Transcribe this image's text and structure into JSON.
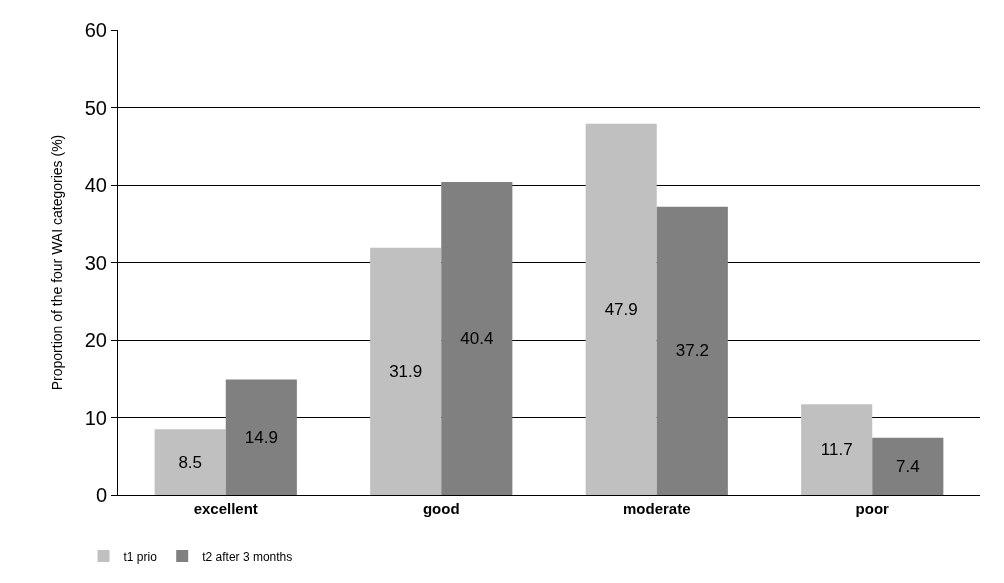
{
  "chart_data": {
    "type": "bar",
    "ylabel": "Proportion of the four WAI categories (%)",
    "categories": [
      "excellent",
      "good",
      "moderate",
      "poor"
    ],
    "series": [
      {
        "name": "t1 prio",
        "color": "#c0c0c0",
        "values": [
          8.5,
          31.9,
          47.9,
          11.7
        ]
      },
      {
        "name": "t2 after 3 months",
        "color": "#808080",
        "values": [
          14.9,
          40.4,
          37.2,
          7.4
        ]
      }
    ],
    "ylim": [
      0,
      60
    ],
    "yticks": [
      0,
      10,
      20,
      30,
      40,
      50,
      60
    ],
    "grid": "y",
    "data_labels": true,
    "legend": "bottom left"
  }
}
